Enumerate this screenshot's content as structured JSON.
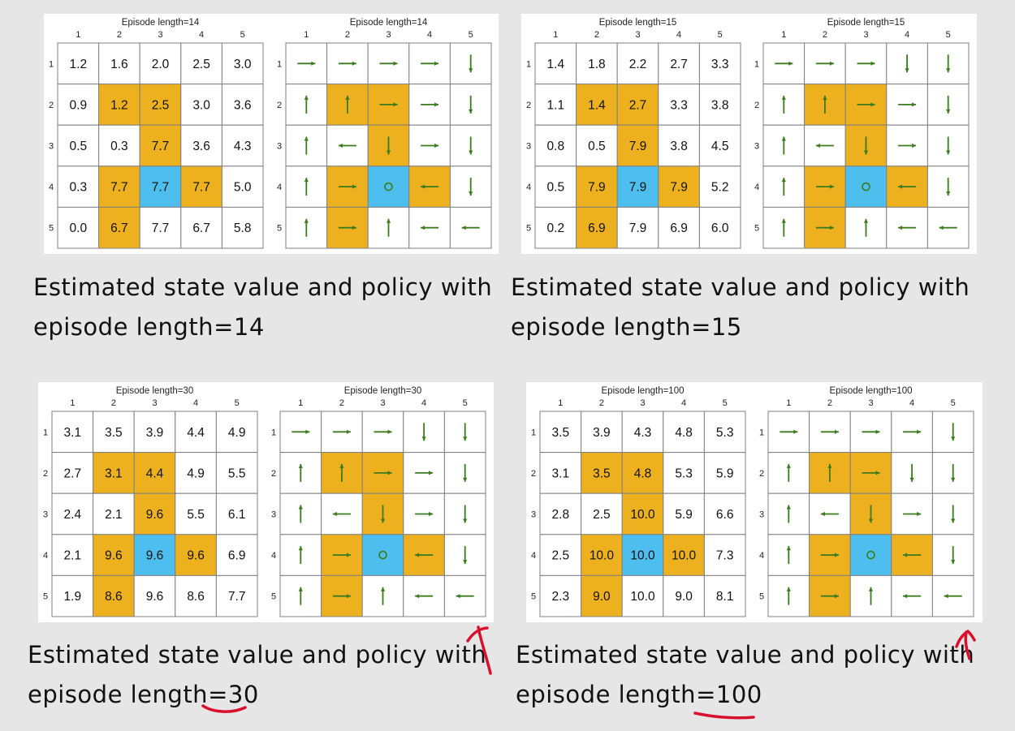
{
  "colors": {
    "forbidden": "#EDB120",
    "target": "#4DBEEE",
    "arrow": "#3C7A1E",
    "grid": "#7f7f7f",
    "annotation": "#d90f2e"
  },
  "col_labels": [
    "1",
    "2",
    "3",
    "4",
    "5"
  ],
  "row_labels": [
    "1",
    "2",
    "3",
    "4",
    "5"
  ],
  "forbidden_cells": [
    [
      1,
      1
    ],
    [
      1,
      2
    ],
    [
      2,
      2
    ],
    [
      3,
      1
    ],
    [
      3,
      3
    ],
    [
      4,
      1
    ]
  ],
  "target_cell": [
    3,
    2
  ],
  "panels": [
    {
      "title": "Episode length=14",
      "caption_line1": "Estimated state value and policy with",
      "caption_line2": "episode length=14",
      "values": [
        [
          "1.2",
          "1.6",
          "2.0",
          "2.5",
          "3.0"
        ],
        [
          "0.9",
          "1.2",
          "2.5",
          "3.0",
          "3.6"
        ],
        [
          "0.5",
          "0.3",
          "7.7",
          "3.6",
          "4.3"
        ],
        [
          "0.3",
          "7.7",
          "7.7",
          "7.7",
          "5.0"
        ],
        [
          "0.0",
          "6.7",
          "7.7",
          "6.7",
          "5.8"
        ]
      ],
      "policy": [
        [
          "right",
          "right",
          "right",
          "right",
          "down"
        ],
        [
          "up",
          "up",
          "right",
          "right",
          "down"
        ],
        [
          "up",
          "left",
          "down",
          "right",
          "down"
        ],
        [
          "up",
          "right",
          "stay",
          "left",
          "down"
        ],
        [
          "up",
          "right",
          "up",
          "left",
          "left"
        ]
      ]
    },
    {
      "title": "Episode length=15",
      "caption_line1": "Estimated state value and policy with",
      "caption_line2": "episode length=15",
      "values": [
        [
          "1.4",
          "1.8",
          "2.2",
          "2.7",
          "3.3"
        ],
        [
          "1.1",
          "1.4",
          "2.7",
          "3.3",
          "3.8"
        ],
        [
          "0.8",
          "0.5",
          "7.9",
          "3.8",
          "4.5"
        ],
        [
          "0.5",
          "7.9",
          "7.9",
          "7.9",
          "5.2"
        ],
        [
          "0.2",
          "6.9",
          "7.9",
          "6.9",
          "6.0"
        ]
      ],
      "policy": [
        [
          "right",
          "right",
          "right",
          "down",
          "down"
        ],
        [
          "up",
          "up",
          "right",
          "right",
          "down"
        ],
        [
          "up",
          "left",
          "down",
          "right",
          "down"
        ],
        [
          "up",
          "right",
          "stay",
          "left",
          "down"
        ],
        [
          "up",
          "right",
          "up",
          "left",
          "left"
        ]
      ]
    },
    {
      "title": "Episode length=30",
      "caption_line1": "Estimated state value and policy with",
      "caption_line2": "episode length=30",
      "values": [
        [
          "3.1",
          "3.5",
          "3.9",
          "4.4",
          "4.9"
        ],
        [
          "2.7",
          "3.1",
          "4.4",
          "4.9",
          "5.5"
        ],
        [
          "2.4",
          "2.1",
          "9.6",
          "5.5",
          "6.1"
        ],
        [
          "2.1",
          "9.6",
          "9.6",
          "9.6",
          "6.9"
        ],
        [
          "1.9",
          "8.6",
          "9.6",
          "8.6",
          "7.7"
        ]
      ],
      "policy": [
        [
          "right",
          "right",
          "right",
          "down",
          "down"
        ],
        [
          "up",
          "up",
          "right",
          "right",
          "down"
        ],
        [
          "up",
          "left",
          "down",
          "right",
          "down"
        ],
        [
          "up",
          "right",
          "stay",
          "left",
          "down"
        ],
        [
          "up",
          "right",
          "up",
          "left",
          "left"
        ]
      ]
    },
    {
      "title": "Episode length=100",
      "caption_line1": "Estimated state value and policy with",
      "caption_line2": "episode length=100",
      "values": [
        [
          "3.5",
          "3.9",
          "4.3",
          "4.8",
          "5.3"
        ],
        [
          "3.1",
          "3.5",
          "4.8",
          "5.3",
          "5.9"
        ],
        [
          "2.8",
          "2.5",
          "10.0",
          "5.9",
          "6.6"
        ],
        [
          "2.5",
          "10.0",
          "10.0",
          "10.0",
          "7.3"
        ],
        [
          "2.3",
          "9.0",
          "10.0",
          "9.0",
          "8.1"
        ]
      ],
      "policy": [
        [
          "right",
          "right",
          "right",
          "right",
          "down"
        ],
        [
          "up",
          "up",
          "right",
          "down",
          "down"
        ],
        [
          "up",
          "left",
          "down",
          "right",
          "down"
        ],
        [
          "up",
          "right",
          "stay",
          "left",
          "down"
        ],
        [
          "up",
          "right",
          "up",
          "left",
          "left"
        ]
      ]
    }
  ]
}
